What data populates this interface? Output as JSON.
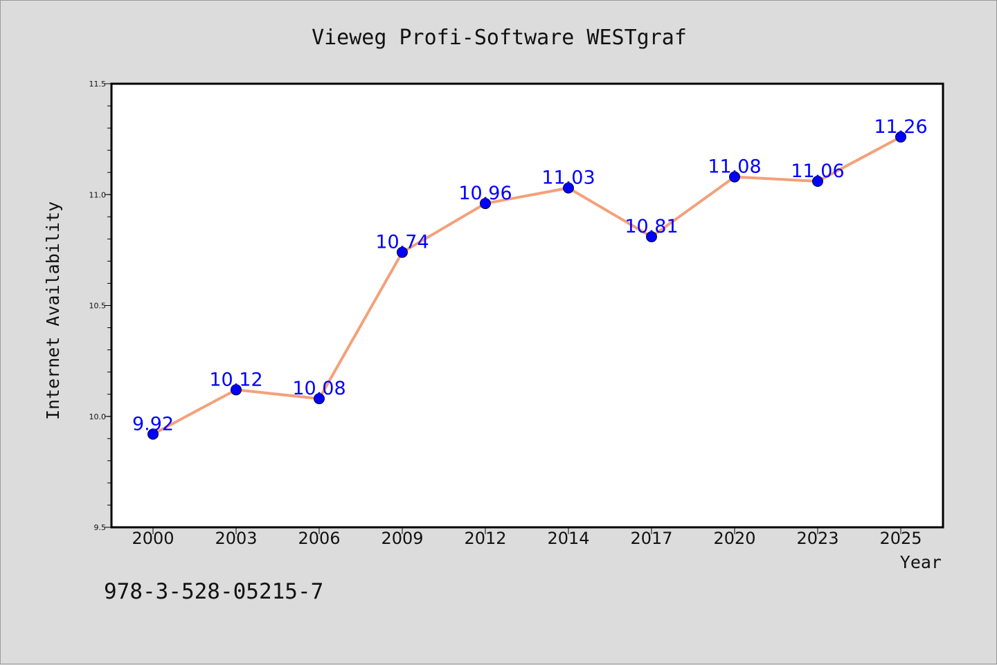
{
  "chart_data": {
    "type": "line",
    "title": "Vieweg Profi-Software WESTgraf",
    "xlabel": "Year",
    "ylabel": "Internet Availability",
    "categories": [
      "2000",
      "2003",
      "2006",
      "2009",
      "2012",
      "2014",
      "2017",
      "2020",
      "2023",
      "2025"
    ],
    "series": [
      {
        "values": [
          9.92,
          10.12,
          10.08,
          10.74,
          10.96,
          11.03,
          10.81,
          11.08,
          11.06,
          11.26
        ],
        "line_color": "#f4a07a",
        "marker_color": "#0000ff",
        "label_color": "#0000ff"
      }
    ],
    "data_labels": [
      "9.92",
      "10.12",
      "10.08",
      "10.74",
      "10.96",
      "11.03",
      "10.81",
      "11.08",
      "11.06",
      "11.26"
    ],
    "ylim": [
      9.5,
      11.5
    ],
    "yticks": [
      "9.5",
      "10.0",
      "10.5",
      "11.0",
      "11.5"
    ],
    "grid": false,
    "background": "#dcdcdc",
    "plot_background": "#ffffff"
  },
  "footer": {
    "isbn": "978-3-528-05215-7"
  }
}
